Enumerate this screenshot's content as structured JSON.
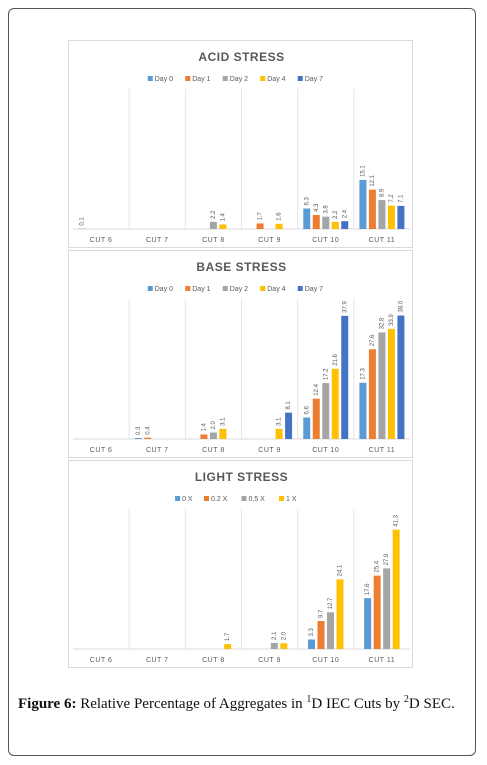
{
  "chart_data": [
    {
      "type": "bar",
      "title": "ACID STRESS",
      "categories": [
        "CUT 6",
        "CUT 7",
        "CUT 8",
        "CUT 9",
        "CUT 10",
        "CUT 11"
      ],
      "ylim": [
        0,
        40
      ],
      "series": [
        {
          "name": "Day 0",
          "color": "#5b9bd5",
          "values": [
            0.1,
            null,
            null,
            null,
            6.3,
            15.1
          ],
          "value_labels": [
            "0.1",
            null,
            null,
            null,
            "6.3",
            "15.1"
          ]
        },
        {
          "name": "Day 1",
          "color": "#ed7d31",
          "values": [
            null,
            null,
            null,
            1.7,
            4.3,
            12.1
          ],
          "value_labels": [
            null,
            null,
            null,
            "1.7",
            "4.3",
            "12.1"
          ]
        },
        {
          "name": "Day 2",
          "color": "#a5a5a5",
          "values": [
            null,
            null,
            2.2,
            null,
            3.8,
            8.9
          ],
          "value_labels": [
            null,
            null,
            "2.2",
            null,
            "3.8",
            "8.9"
          ]
        },
        {
          "name": "Day 4",
          "color": "#ffc000",
          "values": [
            null,
            null,
            1.4,
            1.6,
            2.2,
            7.2
          ],
          "value_labels": [
            null,
            null,
            "1.4",
            "1.6",
            "2.2",
            "7.2"
          ]
        },
        {
          "name": "Day 7",
          "color": "#4472c4",
          "values": [
            null,
            null,
            null,
            null,
            2.4,
            7.1
          ],
          "value_labels": [
            null,
            null,
            null,
            null,
            "2.4",
            "7.1"
          ]
        }
      ]
    },
    {
      "type": "bar",
      "title": "BASE STRESS",
      "categories": [
        "CUT 6",
        "CUT 7",
        "CUT 8",
        "CUT 9",
        "CUT 10",
        "CUT 11"
      ],
      "ylim": [
        0,
        40
      ],
      "series": [
        {
          "name": "Day 0",
          "color": "#5b9bd5",
          "values": [
            null,
            0.3,
            null,
            null,
            6.6,
            17.3
          ],
          "value_labels": [
            null,
            "0.3",
            null,
            null,
            "6.6",
            "17.3"
          ]
        },
        {
          "name": "Day 1",
          "color": "#ed7d31",
          "values": [
            null,
            0.4,
            1.4,
            null,
            12.4,
            27.6
          ],
          "value_labels": [
            null,
            "0.4",
            "1.4",
            null,
            "12.4",
            "27.6"
          ]
        },
        {
          "name": "Day 2",
          "color": "#a5a5a5",
          "values": [
            null,
            null,
            2.0,
            null,
            17.2,
            32.8
          ],
          "value_labels": [
            null,
            null,
            "2.0",
            null,
            "17.2",
            "32.8"
          ]
        },
        {
          "name": "Day 4",
          "color": "#ffc000",
          "values": [
            null,
            null,
            3.1,
            3.1,
            21.6,
            33.9
          ],
          "value_labels": [
            null,
            null,
            "3.1",
            "3.1",
            "21.6",
            "33.9"
          ]
        },
        {
          "name": "Day 7",
          "color": "#4472c4",
          "values": [
            null,
            null,
            null,
            8.1,
            37.9,
            38.0
          ],
          "value_labels": [
            null,
            null,
            null,
            "8.1",
            "37.9",
            "38.0"
          ]
        }
      ]
    },
    {
      "type": "bar",
      "title": "LIGHT STRESS",
      "categories": [
        "CUT 6",
        "CUT 7",
        "CUT 8",
        "CUT 9",
        "CUT 10",
        "CUT 11"
      ],
      "ylim": [
        0,
        45
      ],
      "series": [
        {
          "name": "0 X",
          "color": "#5b9bd5",
          "values": [
            null,
            null,
            null,
            null,
            3.3,
            17.6
          ],
          "value_labels": [
            null,
            null,
            null,
            null,
            "3.3",
            "17.6"
          ]
        },
        {
          "name": "0.2 X",
          "color": "#ed7d31",
          "values": [
            null,
            null,
            null,
            null,
            9.7,
            25.4
          ],
          "value_labels": [
            null,
            null,
            null,
            null,
            "9.7",
            "25.4"
          ]
        },
        {
          "name": "0.5 X",
          "color": "#a5a5a5",
          "values": [
            null,
            null,
            null,
            2.1,
            12.7,
            27.9
          ],
          "value_labels": [
            null,
            null,
            null,
            "2.1",
            "12.7",
            "27.9"
          ]
        },
        {
          "name": "1 X",
          "color": "#ffc000",
          "values": [
            null,
            null,
            1.7,
            2.0,
            24.1,
            41.3
          ],
          "value_labels": [
            null,
            null,
            "1.7",
            "2.0",
            "24.1",
            "41.3"
          ]
        }
      ]
    }
  ],
  "caption": [
    "Figure 6:",
    " Relative Percentage of Aggregates in ",
    "1",
    "D IEC Cuts by ",
    "2",
    "D SEC."
  ]
}
